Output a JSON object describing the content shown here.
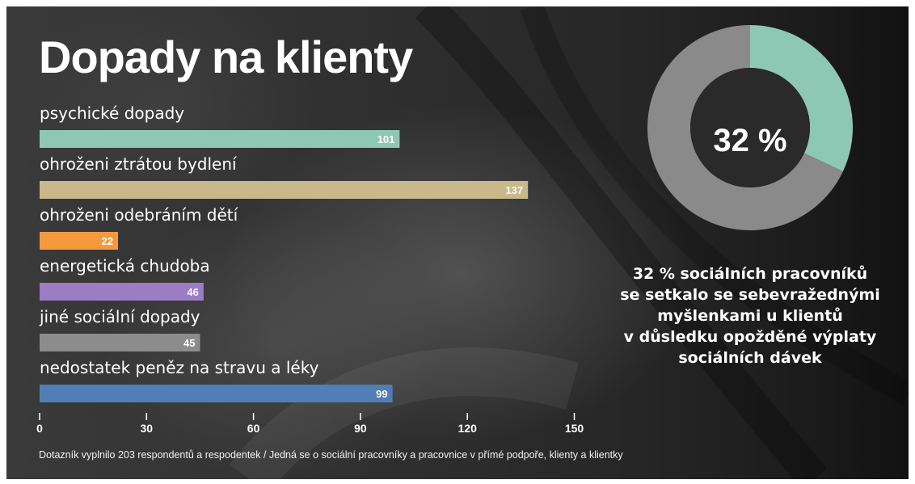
{
  "title": "Dopady na klienty",
  "chart_data": [
    {
      "type": "bar",
      "orientation": "horizontal",
      "categories": [
        "psychické dopady",
        "ohroženi ztrátou bydlení",
        "ohroženi odebráním dětí",
        "energetická chudoba",
        "jiné sociální dopady",
        "nedostatek peněz na stravu a léky"
      ],
      "values": [
        101,
        137,
        22,
        46,
        45,
        99
      ],
      "colors": [
        "#8fc7b5",
        "#c9b98a",
        "#f59a3c",
        "#9c7cc4",
        "#8c8c8c",
        "#4f7fb5"
      ],
      "xlim": [
        0,
        150
      ],
      "ticks": [
        0,
        30,
        60,
        90,
        120,
        150
      ],
      "tick_labels": [
        "0",
        "30",
        "60",
        "90",
        "120",
        "150"
      ],
      "grid": false
    },
    {
      "type": "pie",
      "variant": "donut",
      "values": [
        32,
        68
      ],
      "colors": [
        "#8fc7b5",
        "#8a8a8a"
      ],
      "center_label": "32 %",
      "caption": [
        "32 % sociálních pracovníků",
        "se setkalo se sebevražednými",
        "myšlenkami u klientů",
        "v důsledku opožděné výplaty",
        "sociálních dávek"
      ]
    }
  ],
  "footnote": "Dotazník vyplnilo 203 respondentů a respodentek / Jedná se o sociální pracovníky a pracovnice v přímé podpoře, klienty a klientky",
  "colors": {
    "text": "#ffffff",
    "donut_hole": "#2a2a2a"
  }
}
